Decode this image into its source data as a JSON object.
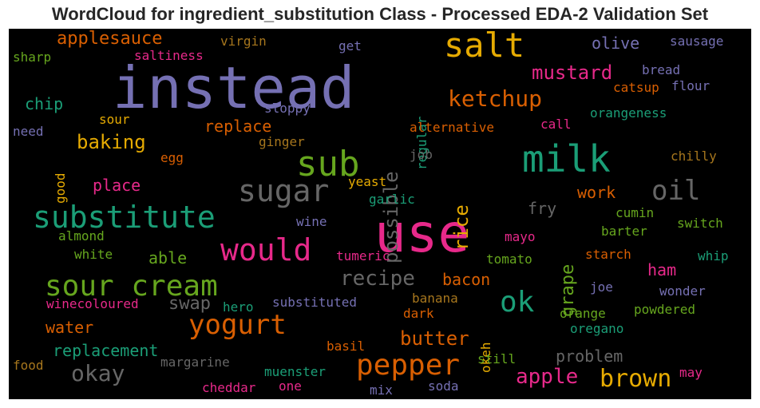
{
  "title": "WordCloud for ingredient_substitution Class - Processed EDA-2 Validation Set",
  "colors": {
    "purple": "#7570b3",
    "pink": "#e7298a",
    "orange": "#d95f02",
    "teal": "#1b9e77",
    "green": "#66a61e",
    "gold": "#e6ab02",
    "brown": "#a6761d",
    "gray": "#666666"
  },
  "words": [
    "instead",
    "use",
    "milk",
    "sub",
    "salt",
    "substitute",
    "sugar",
    "would",
    "sour cream",
    "yogurt",
    "ok",
    "pepper",
    "oil",
    "ketchup",
    "recipe",
    "okay",
    "possible",
    "mustard",
    "brown",
    "rice",
    "apple",
    "butter",
    "baking",
    "swap",
    "applesauce",
    "grape",
    "bacon",
    "replace",
    "water",
    "replacement",
    "olive",
    "ham",
    "place",
    "work",
    "able",
    "problem",
    "fry",
    "chip",
    "saltiness",
    "virgin",
    "sharp",
    "get",
    "sausage",
    "bread",
    "flour",
    "catsup",
    "sloppy",
    "regular",
    "orangeness",
    "need",
    "sour",
    "alternative",
    "call",
    "ginger",
    "good",
    "egg",
    "job",
    "chilly",
    "yeast",
    "garlic",
    "cumin",
    "switch",
    "almond",
    "wine",
    "barter",
    "mayo",
    "white",
    "tumeric",
    "tomato",
    "starch",
    "whip",
    "joe",
    "wonder",
    "winecoloured",
    "hero",
    "substituted",
    "banana",
    "dark",
    "powdered",
    "okeh",
    "orange",
    "oregano",
    "basil",
    "still",
    "margarine",
    "food",
    "muenster",
    "may",
    "cheddar",
    "one",
    "soda",
    "mix"
  ]
}
